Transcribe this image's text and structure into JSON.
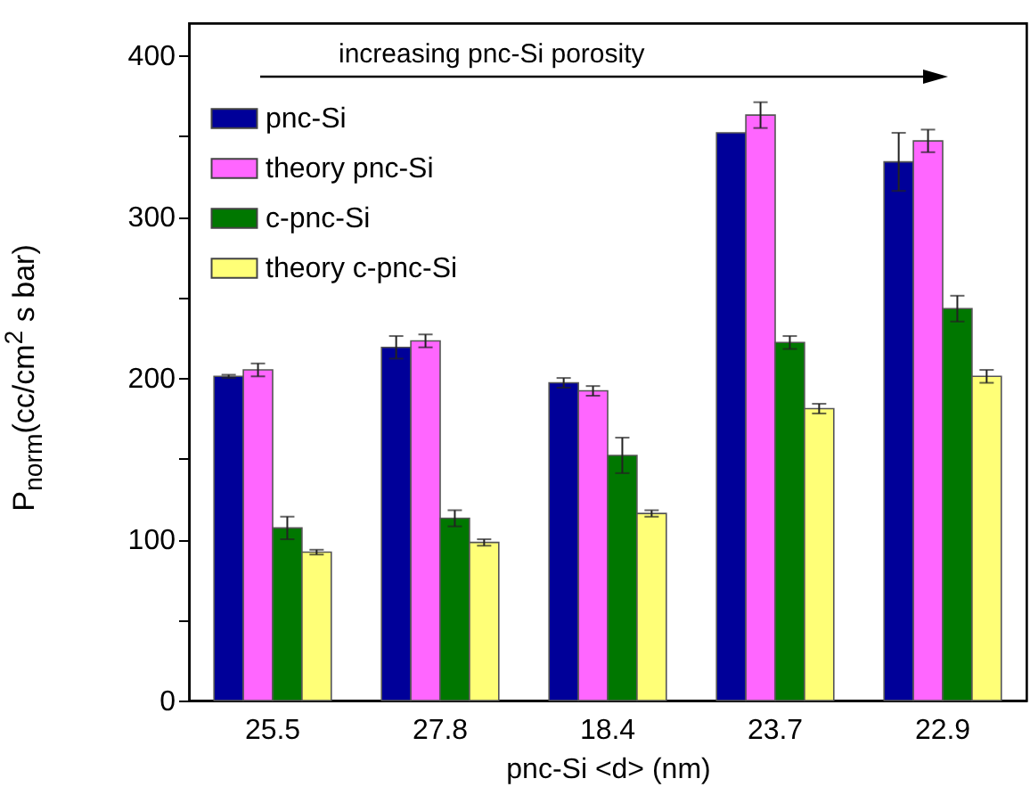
{
  "chart_data": {
    "type": "bar",
    "xlabel": "pnc-Si <d> (nm)",
    "ylabel": "P$_{norm}$(cc/cm$^{2}$ s bar)",
    "annotations": [
      "increasing pnc-Si porosity"
    ],
    "categories": [
      "25.5",
      "27.8",
      "18.4",
      "23.7",
      "22.9"
    ],
    "series": [
      {
        "name": "pnc-Si",
        "color": "#000099",
        "values": [
          201,
          219,
          197,
          352,
          334
        ],
        "errors": [
          1,
          7,
          3,
          null,
          18
        ]
      },
      {
        "name": "theory pnc-Si",
        "color": "#ff66ff",
        "values": [
          205,
          223,
          192,
          363,
          347
        ],
        "errors": [
          4,
          4,
          3,
          8,
          7
        ]
      },
      {
        "name": "c-pnc-Si",
        "color": "#007700",
        "values": [
          107,
          113,
          152,
          222,
          243
        ],
        "errors": [
          7,
          5,
          11,
          4,
          8
        ]
      },
      {
        "name": "theory c-pnc-Si",
        "color": "#ffff77",
        "values": [
          92,
          98,
          116,
          181,
          201
        ],
        "errors": [
          1.5,
          2,
          2,
          3,
          4
        ]
      }
    ],
    "ylim": [
      0,
      420
    ],
    "yticks": [
      0,
      {
        "value": 50,
        "label": null
      },
      100,
      {
        "value": 150,
        "label": null
      },
      200,
      {
        "value": 250,
        "label": null
      },
      300,
      {
        "value": 350,
        "label": null
      },
      400
    ],
    "grid": false,
    "legend": "top left"
  }
}
